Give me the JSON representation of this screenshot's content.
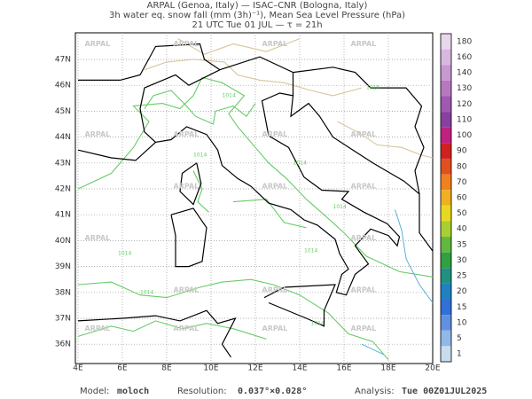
{
  "header": {
    "lines": [
      "ARPAL (Genoa, Italy)  —  ISAC–CNR (Bologna, Italy)",
      "3h water eq. snow fall (mm (3h)⁻¹), Mean Sea Level Pressure (hPa)",
      "21 UTC Tue 01 JUL  —  τ = 21h"
    ]
  },
  "axes": {
    "lon_labels": [
      "4E",
      "6E",
      "8E",
      "10E",
      "12E",
      "14E",
      "16E",
      "18E",
      "20E"
    ],
    "lat_labels": [
      "47N",
      "46N",
      "45N",
      "44N",
      "43N",
      "42N",
      "41N",
      "40N",
      "39N",
      "38N",
      "37N",
      "36N"
    ]
  },
  "watermark": "ARPAL",
  "contour_labels": [
    "1014",
    "1014",
    "1014",
    "1014",
    "1014",
    "1014",
    "1014",
    "1014",
    "1016"
  ],
  "colorbar": {
    "levels": [
      180,
      160,
      140,
      130,
      120,
      110,
      100,
      90,
      80,
      70,
      60,
      50,
      40,
      35,
      30,
      25,
      20,
      15,
      10,
      5,
      1
    ],
    "colors": [
      "#e8d8ec",
      "#d8b8e0",
      "#c898d0",
      "#b878c0",
      "#a058b0",
      "#8840a0",
      "#c02080",
      "#d02020",
      "#e05020",
      "#f08020",
      "#f0b020",
      "#e8d820",
      "#a8d030",
      "#60b840",
      "#30a040",
      "#209080",
      "#2080c0",
      "#3070d8",
      "#6090e0",
      "#90b8e8",
      "#c8dcf0"
    ]
  },
  "footer": {
    "model_label": "Model:",
    "model": "moloch",
    "resolution_label": "Resolution:",
    "resolution": "0.037°×0.028°",
    "analysis_label": "Analysis:",
    "analysis": "Tue 00Z01JUL2025"
  }
}
